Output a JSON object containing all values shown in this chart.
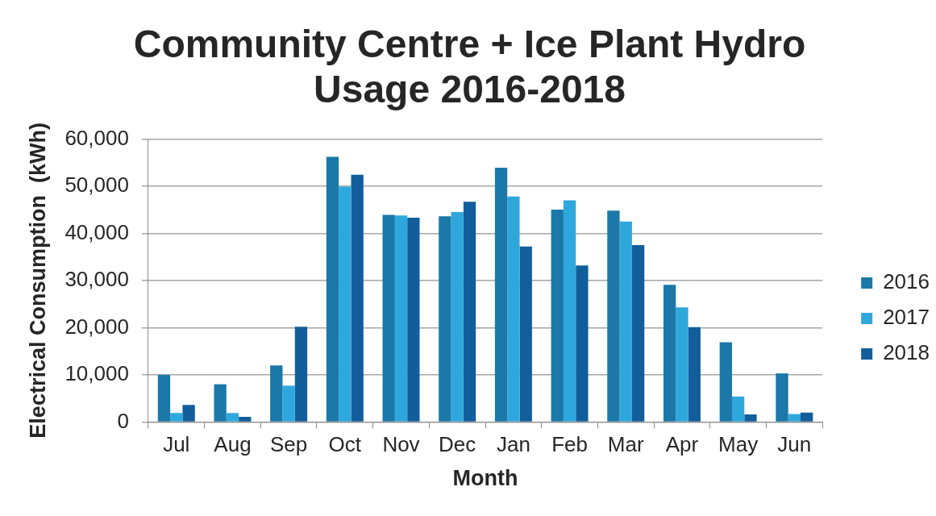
{
  "chart_data": {
    "type": "bar",
    "title": "Community Centre + Ice Plant Hydro Usage 2016-2018",
    "xlabel": "Month",
    "ylabel": "Electrical Consumption  (kWh)",
    "categories": [
      "Jul",
      "Aug",
      "Sep",
      "Oct",
      "Nov",
      "Dec",
      "Jan",
      "Feb",
      "Mar",
      "Apr",
      "May",
      "Jun"
    ],
    "series": [
      {
        "name": "2016",
        "color": "#1b78a8",
        "values": [
          10000,
          8000,
          12000,
          56200,
          43900,
          43600,
          53900,
          45000,
          44800,
          29100,
          16900,
          10300
        ]
      },
      {
        "name": "2017",
        "color": "#2ea8dc",
        "values": [
          1900,
          1900,
          7700,
          49900,
          43800,
          44500,
          47800,
          47000,
          42500,
          24300,
          5400,
          1700
        ]
      },
      {
        "name": "2018",
        "color": "#125e9c",
        "values": [
          3600,
          1100,
          20200,
          52400,
          43300,
          46700,
          37200,
          33200,
          37500,
          20100,
          1600,
          2000
        ]
      }
    ],
    "ylim": [
      0,
      60000
    ],
    "yticks": [
      {
        "value": 0,
        "label": "0"
      },
      {
        "value": 10000,
        "label": "10,000"
      },
      {
        "value": 20000,
        "label": "20,000"
      },
      {
        "value": 30000,
        "label": "30,000"
      },
      {
        "value": 40000,
        "label": "40,000"
      },
      {
        "value": 50000,
        "label": "50,000"
      },
      {
        "value": 60000,
        "label": "60,000"
      }
    ],
    "grid": "y",
    "legend": "right"
  }
}
